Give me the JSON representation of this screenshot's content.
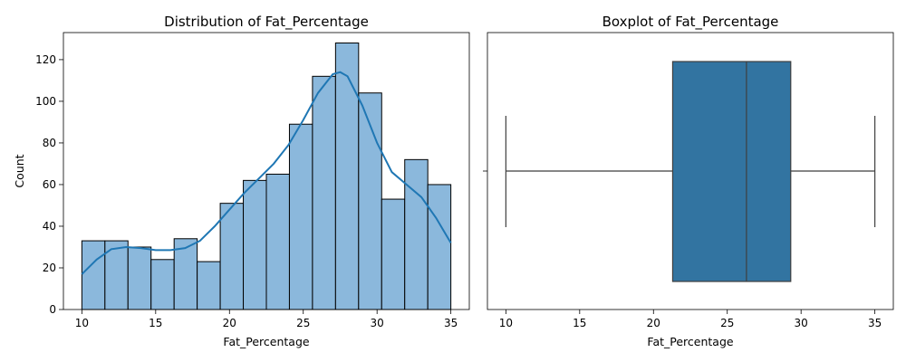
{
  "chart_data": [
    {
      "type": "bar",
      "subtype": "histogram",
      "title": "Distribution of Fat_Percentage",
      "xlabel": "Fat_Percentage",
      "ylabel": "Count",
      "xlim": [
        8.75,
        36.25
      ],
      "ylim": [
        0,
        133
      ],
      "xticks": [
        10,
        15,
        20,
        25,
        30,
        35
      ],
      "yticks": [
        0,
        20,
        40,
        60,
        80,
        100,
        120
      ],
      "bin_edges": [
        10,
        11.5625,
        13.125,
        14.6875,
        16.25,
        17.8125,
        19.375,
        20.9375,
        22.5,
        24.0625,
        25.625,
        27.1875,
        28.75,
        30.3125,
        31.875,
        33.4375,
        35
      ],
      "counts": [
        33,
        33,
        30,
        24,
        34,
        23,
        51,
        62,
        65,
        89,
        112,
        128,
        104,
        53,
        72,
        60
      ],
      "bar_color": "#8bb8dc",
      "kde": {
        "color": "#1f77b4",
        "x": [
          10,
          11,
          12,
          13,
          14,
          15,
          16,
          17,
          18,
          19,
          20,
          21,
          22,
          23,
          24,
          25,
          26,
          27,
          27.5,
          28,
          29,
          30,
          31,
          32,
          33,
          34,
          35
        ],
        "y": [
          17,
          24,
          29,
          30,
          29.5,
          28.5,
          28.5,
          29.5,
          33,
          40,
          48,
          56,
          63,
          70,
          79,
          91,
          104,
          113,
          114,
          112,
          98,
          80,
          66,
          60,
          54,
          44,
          32
        ]
      },
      "grid": false
    },
    {
      "type": "boxplot",
      "title": "Boxplot of Fat_Percentage",
      "xlabel": "Fat_Percentage",
      "xlim": [
        8.75,
        36.25
      ],
      "xticks": [
        10,
        15,
        20,
        25,
        30,
        35
      ],
      "min": 10,
      "q1": 21.3,
      "median": 26.3,
      "q3": 29.3,
      "max": 35,
      "box_color": "#3274a1",
      "grid": false
    }
  ]
}
